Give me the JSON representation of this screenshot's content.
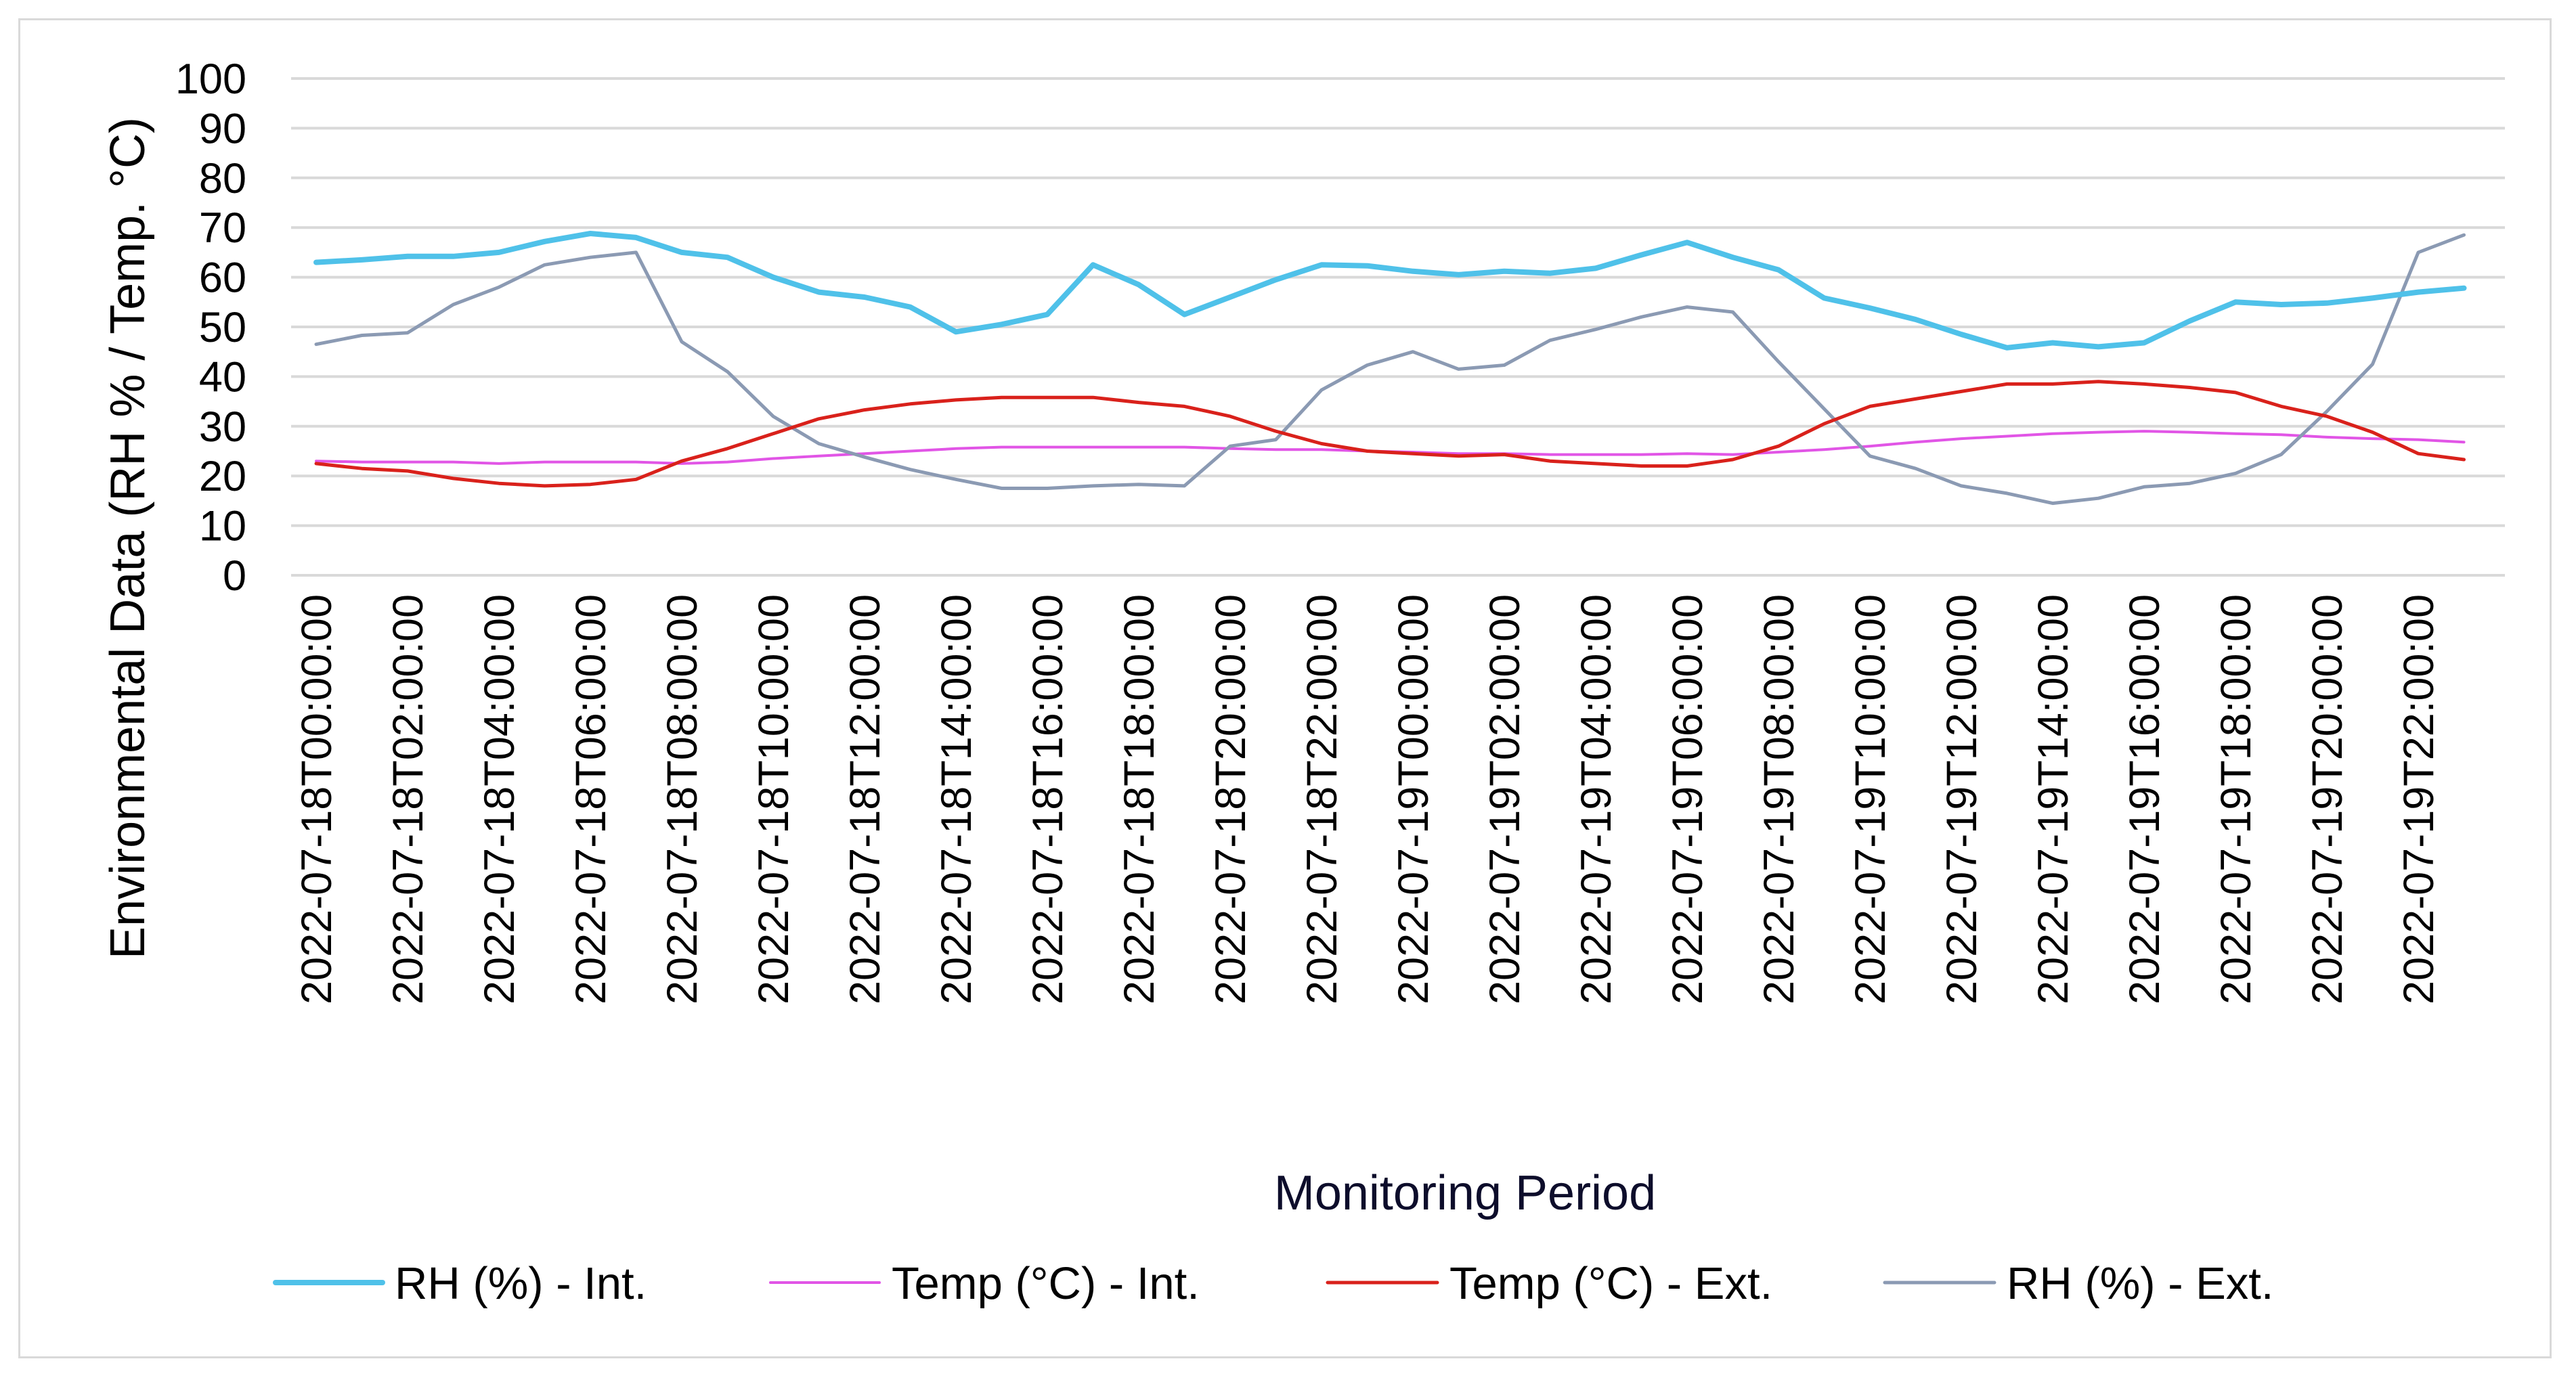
{
  "chart_data": {
    "type": "line",
    "title": "",
    "xlabel": "Monitoring Period",
    "ylabel": "Environmental Data (RH % / Temp. °C)",
    "ylim": [
      0,
      100
    ],
    "yticks": [
      0,
      10,
      20,
      30,
      40,
      50,
      60,
      70,
      80,
      90,
      100
    ],
    "x_tick_labels": [
      "2022-07-18T00:00:00",
      "2022-07-18T02:00:00",
      "2022-07-18T04:00:00",
      "2022-07-18T06:00:00",
      "2022-07-18T08:00:00",
      "2022-07-18T10:00:00",
      "2022-07-18T12:00:00",
      "2022-07-18T14:00:00",
      "2022-07-18T16:00:00",
      "2022-07-18T18:00:00",
      "2022-07-18T20:00:00",
      "2022-07-18T22:00:00",
      "2022-07-19T00:00:00",
      "2022-07-19T02:00:00",
      "2022-07-19T04:00:00",
      "2022-07-19T06:00:00",
      "2022-07-19T08:00:00",
      "2022-07-19T10:00:00",
      "2022-07-19T12:00:00",
      "2022-07-19T14:00:00",
      "2022-07-19T16:00:00",
      "2022-07-19T18:00:00",
      "2022-07-19T20:00:00",
      "2022-07-19T22:00:00"
    ],
    "x_hours": [
      0,
      1,
      2,
      3,
      4,
      5,
      6,
      7,
      8,
      9,
      10,
      11,
      12,
      13,
      14,
      15,
      16,
      17,
      18,
      19,
      20,
      21,
      22,
      23,
      24,
      25,
      26,
      27,
      28,
      29,
      30,
      31,
      32,
      33,
      34,
      35,
      36,
      37,
      38,
      39,
      40,
      41,
      42,
      43,
      44,
      45,
      46,
      47
    ],
    "legend_position": "bottom",
    "grid": true,
    "series": [
      {
        "name": "RH (%) - Int.",
        "color": "#4fc1e9",
        "width": "thick",
        "values": [
          63,
          63.5,
          64.2,
          64.2,
          65,
          67.2,
          68.8,
          68,
          65,
          64,
          60,
          57,
          56,
          54,
          49,
          50.5,
          52.5,
          62.5,
          58.5,
          52.5,
          56,
          59.5,
          62.5,
          62.3,
          61.2,
          60.5,
          61.2,
          60.8,
          61.8,
          64.5,
          67,
          64,
          61.5,
          55.8,
          53.8,
          51.5,
          48.5,
          45.8,
          46.8,
          46,
          46.8,
          51.2,
          55,
          54.5,
          54.8,
          55.8,
          57,
          57.8
        ]
      },
      {
        "name": "Temp (°C) - Int.",
        "color": "#e155e6",
        "width": "thin",
        "values": [
          23,
          22.8,
          22.8,
          22.8,
          22.5,
          22.8,
          22.8,
          22.8,
          22.5,
          22.8,
          23.5,
          24,
          24.5,
          25,
          25.5,
          25.8,
          25.8,
          25.8,
          25.8,
          25.8,
          25.5,
          25.3,
          25.3,
          25,
          24.8,
          24.5,
          24.5,
          24.3,
          24.3,
          24.3,
          24.5,
          24.3,
          24.8,
          25.3,
          26,
          26.8,
          27.5,
          28,
          28.5,
          28.8,
          29,
          28.8,
          28.5,
          28.3,
          27.8,
          27.5,
          27.3,
          26.8
        ]
      },
      {
        "name": "Temp (°C) - Ext.",
        "color": "#d9211b",
        "width": "medium",
        "values": [
          22.5,
          21.5,
          21,
          19.5,
          18.5,
          18,
          18.3,
          19.3,
          23,
          25.5,
          28.5,
          31.5,
          33.3,
          34.5,
          35.3,
          35.8,
          35.8,
          35.8,
          34.8,
          34,
          32,
          29,
          26.5,
          25,
          24.5,
          24,
          24.3,
          23,
          22.5,
          22,
          22,
          23.3,
          26,
          30.5,
          34,
          35.5,
          37,
          38.5,
          38.5,
          39,
          38.5,
          37.8,
          36.8,
          34,
          32,
          28.8,
          24.5,
          23.3
        ]
      },
      {
        "name": "RH (%) - Ext.",
        "color": "#8b9ab3",
        "width": "medium",
        "values": [
          46.5,
          48.3,
          48.8,
          54.5,
          58,
          62.5,
          64,
          65,
          47,
          41,
          32,
          26.5,
          23.8,
          21.3,
          19.3,
          17.5,
          17.5,
          18,
          18.3,
          18,
          26,
          27.3,
          37.3,
          42.3,
          45,
          41.5,
          42.3,
          47.3,
          49.5,
          52,
          54,
          53,
          43,
          33.5,
          24,
          21.5,
          18,
          16.5,
          14.5,
          15.5,
          17.8,
          18.5,
          20.5,
          24.3,
          33,
          42.5,
          65,
          68.5
        ]
      }
    ]
  }
}
